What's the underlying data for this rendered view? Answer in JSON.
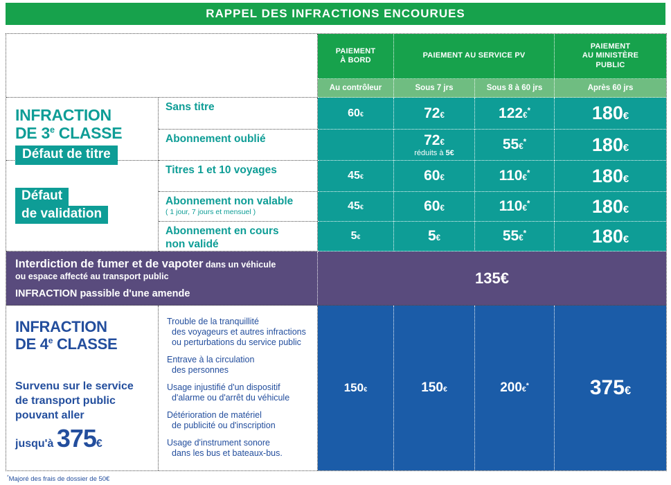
{
  "title": "RAPPEL DES INFRACTIONS ENCOURUES",
  "colors": {
    "green": "#17A24C",
    "lightgreen": "#6FBD81",
    "teal": "#0E9D96",
    "purple": "#594B7D",
    "blue": "#1B5CA8",
    "textblue": "#234E9D"
  },
  "header": {
    "bord_l1": "PAIEMENT",
    "bord_l2": "À BORD",
    "pv": "PAIEMENT AU SERVICE PV",
    "mp_l1": "PAIEMENT",
    "mp_l2": "AU MINISTÈRE",
    "mp_l3": "PUBLIC",
    "sub": [
      "Au contrôleur",
      "Sous 7 jrs",
      "Sous 8 à 60 jrs",
      "Après 60 jrs"
    ]
  },
  "sec3": {
    "t1": "INFRACTION",
    "t2a": "DE 3",
    "t2sup": "e",
    "t2b": "CLASSE",
    "badge1": "Défaut de titre",
    "badge2_l1": "Défaut",
    "badge2_l2": "de validation"
  },
  "rows": [
    {
      "label_l1": "Sans titre",
      "values": [
        {
          "num": "60",
          "eur": "€",
          "star": ""
        },
        {
          "num": "72",
          "eur": "€",
          "star": ""
        },
        {
          "num": "122",
          "eur": "€",
          "star": "*"
        },
        {
          "num": "180",
          "eur": "€",
          "star": ""
        }
      ]
    },
    {
      "label_l1": "Abonnement oublié",
      "values": [
        {
          "num": "",
          "eur": "",
          "star": ""
        },
        {
          "num": "72",
          "eur": "€",
          "star": "",
          "sub_pre": "réduits à ",
          "sub_bold": "5€"
        },
        {
          "num": "55",
          "eur": "€",
          "star": "*"
        },
        {
          "num": "180",
          "eur": "€",
          "star": ""
        }
      ]
    },
    {
      "label_l1": "Titres 1 et 10 voyages",
      "values": [
        {
          "num": "45",
          "eur": "€",
          "star": ""
        },
        {
          "num": "60",
          "eur": "€",
          "star": ""
        },
        {
          "num": "110",
          "eur": "€",
          "star": "*"
        },
        {
          "num": "180",
          "eur": "€",
          "star": ""
        }
      ]
    },
    {
      "label_l1": "Abonnement non valable",
      "label_small": "( 1 jour, 7 jours et mensuel )",
      "values": [
        {
          "num": "45",
          "eur": "€",
          "star": ""
        },
        {
          "num": "60",
          "eur": "€",
          "star": ""
        },
        {
          "num": "110",
          "eur": "€",
          "star": "*"
        },
        {
          "num": "180",
          "eur": "€",
          "star": ""
        }
      ]
    },
    {
      "label_l1": "Abonnement en cours",
      "label_l2": "non validé",
      "values": [
        {
          "num": "5",
          "eur": "€",
          "star": ""
        },
        {
          "num": "5",
          "eur": "€",
          "star": ""
        },
        {
          "num": "55",
          "eur": "€",
          "star": "*"
        },
        {
          "num": "180",
          "eur": "€",
          "star": ""
        }
      ]
    }
  ],
  "smoking": {
    "bold1": "Interdiction de fumer et de vapoter",
    "rest1": "dans un véhicule",
    "line2": "ou espace affecté au transport public",
    "line3_bold": "INFRACTION",
    "line3_rest": "passible d'une amende",
    "value_num": "135",
    "value_eur": "€"
  },
  "sec4": {
    "t1": "INFRACTION",
    "t2a": "DE 4",
    "t2sup": "e",
    "t2b": "CLASSE",
    "d1": "Survenu sur le service",
    "d2": "de transport public",
    "d3": "pouvant aller",
    "jusqua": "jusqu'à",
    "amount": "375",
    "eur": "€",
    "items": [
      [
        "Trouble de la tranquillité",
        "des voyageurs et autres infractions",
        "ou perturbations du service public"
      ],
      [
        "Entrave à la circulation",
        "des personnes"
      ],
      [
        "Usage injustifié d'un dispositif",
        "d'alarme ou d'arrêt du véhicule"
      ],
      [
        "Détérioration de matériel",
        "de publicité ou d'inscription"
      ],
      [
        "Usage d'instrument sonore",
        "dans les bus et bateaux-bus."
      ]
    ],
    "values": [
      {
        "num": "150",
        "eur": "€",
        "star": ""
      },
      {
        "num": "150",
        "eur": "€",
        "star": ""
      },
      {
        "num": "200",
        "eur": "€",
        "star": "*"
      },
      {
        "num": "375",
        "eur": "€",
        "star": ""
      }
    ]
  },
  "footnote": {
    "star": "*",
    "text": "Majoré des frais de dossier de 50€"
  }
}
